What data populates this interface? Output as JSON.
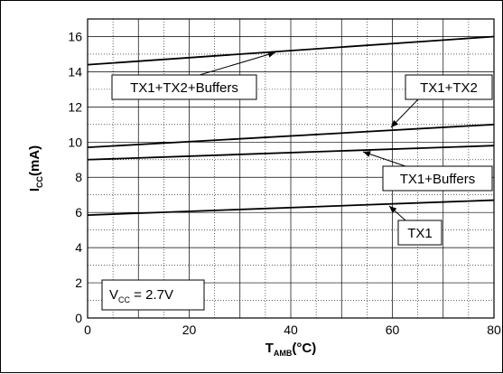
{
  "chart_data": {
    "type": "line",
    "xlabel": {
      "main": "T",
      "sub": "AMB",
      "unit": "(°C)"
    },
    "ylabel": {
      "main": "I",
      "sub": "CC",
      "unit": "(mA)"
    },
    "xlim": [
      0,
      80
    ],
    "ylim": [
      0,
      17
    ],
    "x_ticks": [
      0,
      20,
      40,
      60,
      80
    ],
    "y_ticks": [
      0,
      2,
      4,
      6,
      8,
      10,
      12,
      14,
      16
    ],
    "grid": true,
    "series": [
      {
        "name": "TX1+TX2+Buffers",
        "x": [
          0,
          80
        ],
        "y": [
          14.4,
          16.0
        ]
      },
      {
        "name": "TX1+TX2",
        "x": [
          0,
          80
        ],
        "y": [
          9.7,
          11.0
        ]
      },
      {
        "name": "TX1+Buffers",
        "x": [
          0,
          80
        ],
        "y": [
          9.0,
          9.8
        ]
      },
      {
        "name": "TX1",
        "x": [
          0,
          80
        ],
        "y": [
          5.85,
          6.7
        ]
      }
    ],
    "annotations": [
      {
        "text": "TX1+TX2+Buffers",
        "series": "TX1+TX2+Buffers"
      },
      {
        "text": "TX1+TX2",
        "series": "TX1+TX2"
      },
      {
        "text": "TX1+Buffers",
        "series": "TX1+Buffers"
      },
      {
        "text": "TX1",
        "series": "TX1"
      }
    ],
    "condition": {
      "main": "V",
      "sub": "CC",
      "rest": " = 2.7V"
    }
  }
}
